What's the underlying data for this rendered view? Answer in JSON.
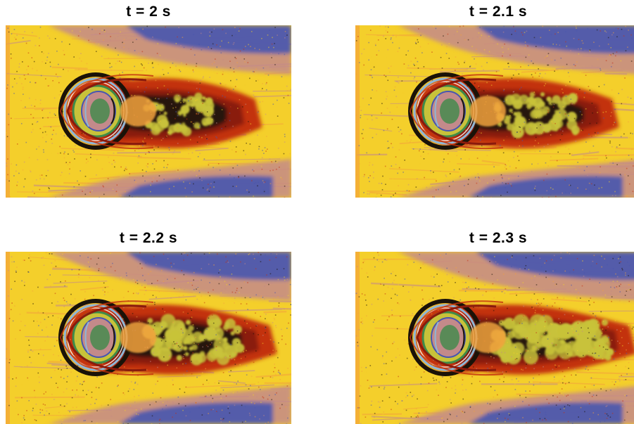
{
  "panels": [
    {
      "title": "t = 2 s",
      "wake_fill": 0.35
    },
    {
      "title": "t = 2.1 s",
      "wake_fill": 0.5
    },
    {
      "title": "t = 2.2 s",
      "wake_fill": 0.65
    },
    {
      "title": "t = 2.3 s",
      "wake_fill": 0.85
    }
  ],
  "colors": {
    "background_yellow": "#f4cf2b",
    "free_stream_orange": "#f3a23c",
    "mauve": "#c38a8a",
    "blue": "#4756b0",
    "dark_red": "#8a1a0d",
    "red": "#c3300f",
    "black": "#1a1208",
    "olive_yellow": "#c8c23a",
    "green": "#3f8a4a",
    "light_blue": "#8fb6d6",
    "white": "#ffffff"
  }
}
